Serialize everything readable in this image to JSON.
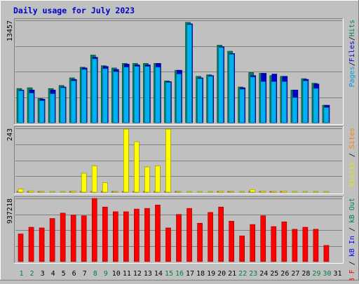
{
  "chart_data": {
    "type": "bar",
    "title": "Daily usage for July 2023",
    "categories": [
      "1",
      "2",
      "3",
      "4",
      "5",
      "6",
      "7",
      "8",
      "9",
      "10",
      "11",
      "12",
      "13",
      "14",
      "15",
      "16",
      "17",
      "18",
      "19",
      "20",
      "21",
      "22",
      "23",
      "24",
      "25",
      "26",
      "27",
      "28",
      "29",
      "30",
      "31"
    ],
    "weekend_days": [
      "1",
      "2",
      "8",
      "9",
      "15",
      "16",
      "22",
      "23",
      "29",
      "30"
    ],
    "panels": [
      {
        "id": "top",
        "ymax": 13457,
        "ymax_label": "13457",
        "right_label": [
          {
            "text": "Pages",
            "color": "#00a0e0"
          },
          {
            "text": "/",
            "color": "#000000"
          },
          {
            "text": "Files",
            "color": "#0000cc"
          },
          {
            "text": "/",
            "color": "#000000"
          },
          {
            "text": "Hits",
            "color": "#008060"
          }
        ],
        "series": [
          {
            "name": "Hits",
            "color": "#008060",
            "values": [
              4500,
              4600,
              3200,
              4500,
              4900,
              5900,
              7300,
              8900,
              7500,
              7200,
              7800,
              7800,
              7800,
              7800,
              5500,
              6900,
              13200,
              6100,
              6300,
              10200,
              9400,
              4700,
              6600,
              6500,
              6200,
              6100,
              4300,
              5800,
              5200,
              2300,
              0
            ]
          },
          {
            "name": "Files",
            "color": "#0000cc",
            "values": [
              4300,
              4300,
              3100,
              4300,
              4700,
              5700,
              7200,
              8600,
              7400,
              7000,
              7700,
              7600,
              7600,
              7800,
              5400,
              6900,
              13000,
              5900,
              6200,
              10000,
              9100,
              4600,
              6200,
              6500,
              6400,
              6100,
              4300,
              5700,
              5100,
              2300,
              0
            ]
          },
          {
            "name": "Pages",
            "color": "#00b0f0",
            "values": [
              4200,
              3900,
              2900,
              3800,
              4600,
              5500,
              7000,
              8400,
              7100,
              6700,
              7300,
              7400,
              7400,
              7300,
              5300,
              6400,
              12900,
              5800,
              6100,
              9900,
              9000,
              4400,
              6000,
              5400,
              5400,
              5400,
              3300,
              5500,
              4500,
              2000,
              0
            ]
          }
        ]
      },
      {
        "id": "mid",
        "ymax": 243,
        "ymax_label": "243",
        "right_label": [
          {
            "text": "Visits",
            "color": "#e8e800"
          },
          {
            "text": " / ",
            "color": "#000000"
          },
          {
            "text": "Sites",
            "color": "#ff8000"
          }
        ],
        "series": [
          {
            "name": "Sites",
            "color": "#ff8000",
            "values": [
              2,
              1,
              1,
              0,
              0,
              1,
              1,
              1,
              1,
              1,
              1,
              1,
              1,
              1,
              1,
              1,
              0,
              0,
              0,
              1,
              1,
              0,
              1,
              1,
              1,
              1,
              0,
              0,
              0,
              0,
              0
            ]
          },
          {
            "name": "Visits",
            "color": "#ffff00",
            "values": [
              12,
              5,
              3,
              1,
              1,
              4,
              72,
              100,
              36,
              2,
              240,
              192,
              96,
              100,
              240,
              2,
              2,
              2,
              2,
              4,
              2,
              2,
              10,
              4,
              3,
              4,
              3,
              2,
              2,
              2,
              0
            ]
          }
        ]
      },
      {
        "id": "bot",
        "ymax": 937218,
        "ymax_label": "937218",
        "right_label": [
          {
            "text": "kB F",
            "color": "#ff0000"
          },
          {
            "text": " / ",
            "color": "#000000"
          },
          {
            "text": "kB In",
            "color": "#0000ff"
          },
          {
            "text": " / ",
            "color": "#000000"
          },
          {
            "text": "kB Out",
            "color": "#008060"
          }
        ],
        "series": [
          {
            "name": "kB F",
            "color": "#ff0000",
            "values": [
              410000,
              510000,
              500000,
              640000,
              720000,
              690000,
              680000,
              937218,
              810000,
              740000,
              740000,
              780000,
              790000,
              840000,
              500000,
              700000,
              790000,
              570000,
              730000,
              810000,
              600000,
              380000,
              550000,
              680000,
              520000,
              590000,
              480000,
              510000,
              480000,
              240000,
              0
            ]
          }
        ]
      }
    ]
  }
}
